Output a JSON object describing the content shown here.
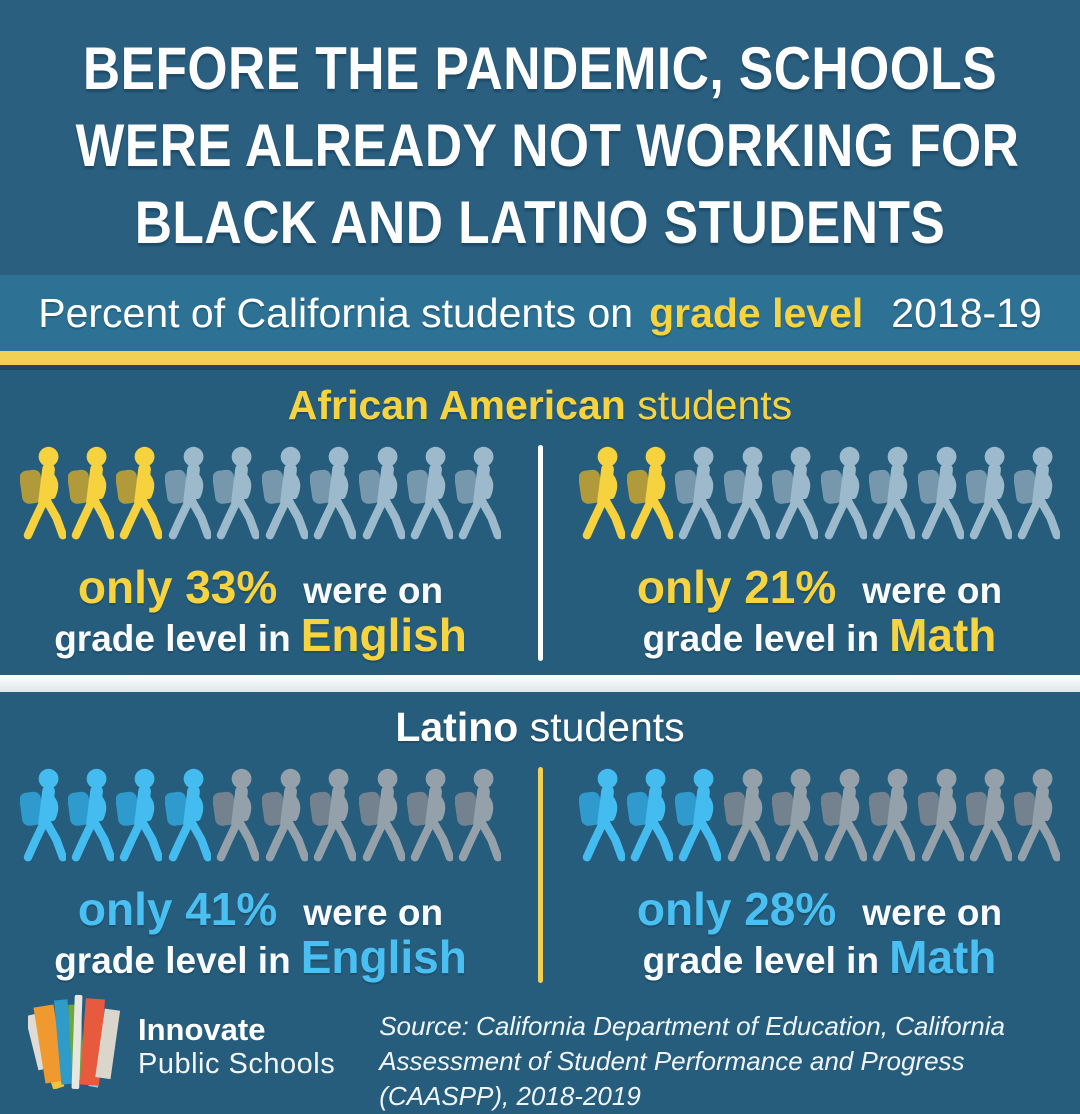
{
  "colors": {
    "header_bg": "#2A5F80",
    "body_bg": "#265D7D",
    "subtitle_bg": "#2D7294",
    "yellow_bar": "#F2D054",
    "accent_yellow": "#F6D33F",
    "accent_blue": "#4AC0F2",
    "white": "#FFFFFF"
  },
  "header": {
    "lines": [
      "BEFORE THE PANDEMIC, SCHOOLS",
      "WERE ALREADY NOT WORKING FOR",
      "BLACK AND LATINO STUDENTS"
    ]
  },
  "subtitle": {
    "prefix": "Percent of California students on",
    "highlight": "grade level",
    "year": "2018-19"
  },
  "sections": [
    {
      "title_bold": "African American",
      "title_rest": " students",
      "title_color": "#F6D33F",
      "accent": "#F6D33F",
      "divider_color": "#FFFFFF",
      "icon_filled": {
        "body": "#F6D23E",
        "pack": "#BCA034"
      },
      "icon_muted": {
        "body": "#9DBACD",
        "pack": "#7E9DB0"
      },
      "cells": [
        {
          "value": 33,
          "stat": "only 33%",
          "tail": "were on",
          "line2": "grade level in",
          "subject": "English"
        },
        {
          "value": 21,
          "stat": "only 21%",
          "tail": "were on",
          "line2": "grade level in",
          "subject": "Math"
        }
      ]
    },
    {
      "title_bold": "Latino",
      "title_rest": " students",
      "title_color": "#FFFFFF",
      "accent": "#4AC0F2",
      "divider_color": "#F2D054",
      "icon_filled": {
        "body": "#45BCF0",
        "pack": "#2F9FD4"
      },
      "icon_muted": {
        "body": "#94A1AA",
        "pack": "#79868F"
      },
      "cells": [
        {
          "value": 41,
          "stat": "only 41%",
          "tail": "were on",
          "line2": "grade level in",
          "subject": "English"
        },
        {
          "value": 28,
          "stat": "only 28%",
          "tail": "were on",
          "line2": "grade level in",
          "subject": "Math"
        }
      ]
    }
  ],
  "chart_data": {
    "type": "bar",
    "variant": "pictogram-unit-chart",
    "title": "Percent of California students on grade level 2018-19",
    "categories": [
      "English",
      "Math"
    ],
    "series": [
      {
        "name": "African American students",
        "values": [
          33,
          21
        ]
      },
      {
        "name": "Latino students",
        "values": [
          41,
          28
        ]
      }
    ],
    "unit": "%",
    "icons_per_row": 10,
    "ylim": [
      0,
      100
    ],
    "legend_position": "section-headers",
    "grid": false
  },
  "footer": {
    "brand_line1": "Innovate",
    "brand_line2": "Public Schools",
    "source_line1": "Source: California Department of Education, California Assessment of Student",
    "source_line2": "Performance and Progress (CAASPP), 2018-2019"
  }
}
